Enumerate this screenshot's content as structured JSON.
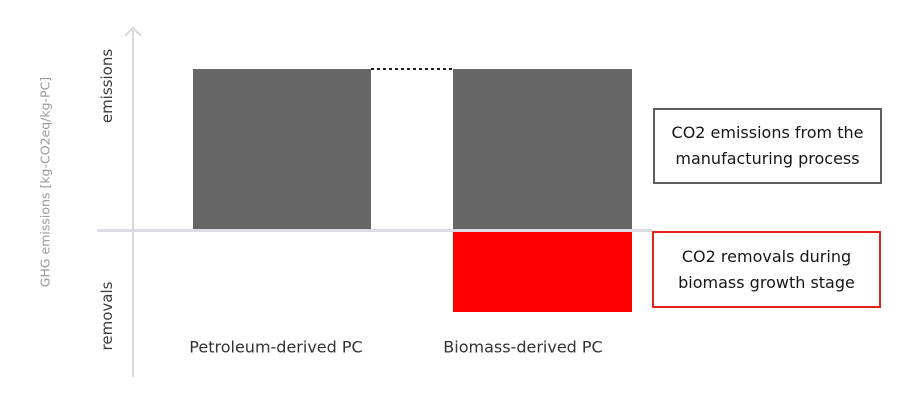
{
  "figure": {
    "y_axis_label": "GHG emissions [kg-CO2eq/kg-PC]",
    "zone_labels": {
      "positive": "emissions",
      "negative": "removals"
    }
  },
  "annotations": {
    "emissions_box": {
      "lines": [
        "CO2 emissions from the",
        "manufacturing process"
      ],
      "border_color": "#5e5e5e"
    },
    "removals_box": {
      "lines": [
        "CO2 removals during",
        "biomass growth stage"
      ],
      "border_color": "#e7231d"
    }
  },
  "colors": {
    "bar_gray": "#666666",
    "removal_red": "#ff0000",
    "axis_line": "#d9d9d9",
    "zero_line": "#dcdce2",
    "dotted_connector": "#1f1f1f"
  },
  "chart_data": {
    "type": "bar",
    "categories": [
      "Petroleum-derived PC",
      "Biomass-derived PC"
    ],
    "series": [
      {
        "name": "CO2 emissions from the manufacturing process",
        "color": "#666666",
        "values": [
          1.0,
          1.0
        ]
      },
      {
        "name": "CO2 removals during biomass growth stage",
        "color": "#ff0000",
        "values": [
          0,
          -0.5
        ]
      }
    ],
    "title": "",
    "xlabel": "",
    "ylabel": "GHG emissions [kg-CO2eq/kg-PC]",
    "ylim": [
      -0.9,
      1.3
    ],
    "grid": false,
    "legend_position": "callout boxes at right",
    "annotations_meaning": "dotted line connects equal emission bar tops; axis is qualitative with no numeric ticks, split into emissions (above zero) and removals (below zero)"
  }
}
